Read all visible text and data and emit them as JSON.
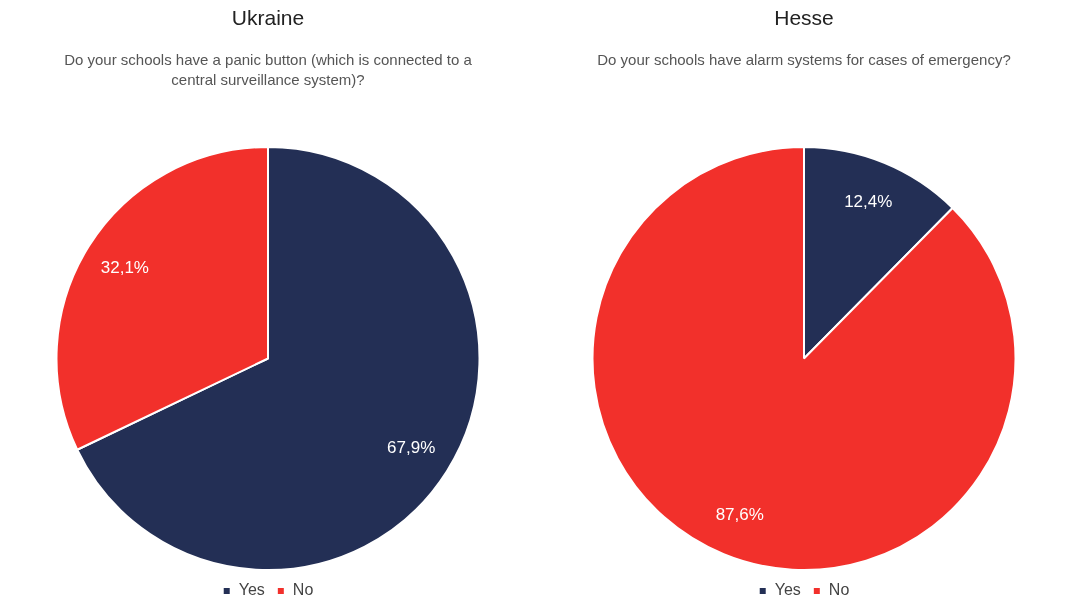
{
  "chart_data": [
    {
      "type": "pie",
      "title": "Ukraine",
      "subtitle": "Do your schools have a panic button (which is connected to a central surveillance system)?",
      "categories": [
        "Yes",
        "No"
      ],
      "values": [
        67.9,
        32.1
      ],
      "colors": [
        "#232f55",
        "#f2302b"
      ],
      "value_labels": [
        "67,9%",
        "32,1%"
      ],
      "legend": "bottom"
    },
    {
      "type": "pie",
      "title": "Hesse",
      "subtitle": "Do your schools have alarm systems for cases of emergency?",
      "categories": [
        "Yes",
        "No"
      ],
      "values": [
        12.4,
        87.6
      ],
      "colors": [
        "#232f55",
        "#f2302b"
      ],
      "value_labels": [
        "12,4%",
        "87,6%"
      ],
      "legend": "bottom"
    }
  ]
}
